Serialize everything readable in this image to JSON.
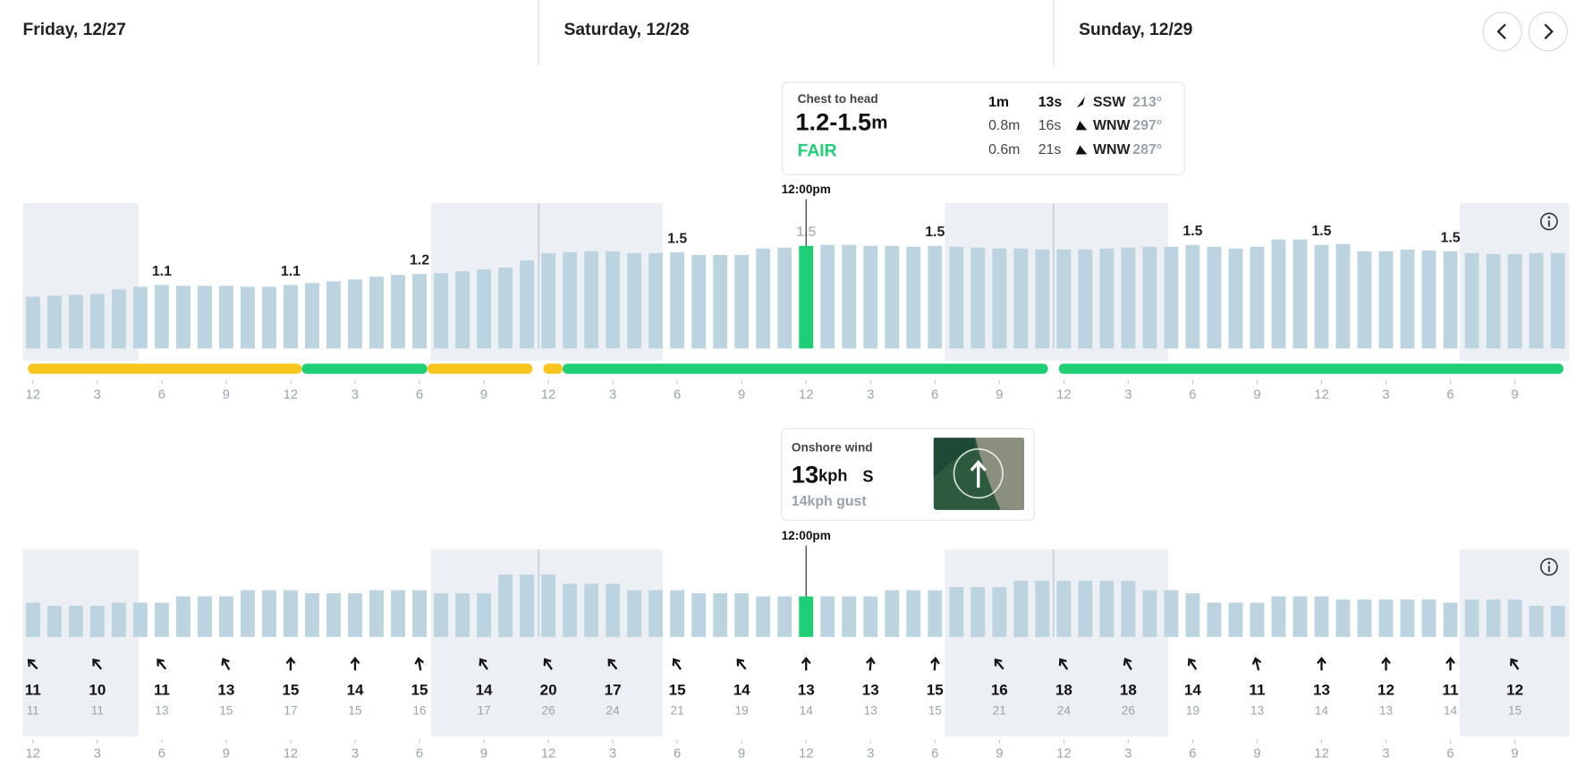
{
  "days": [
    "Friday, 12/27",
    "Saturday, 12/28",
    "Sunday, 12/29"
  ],
  "surf_tooltip": {
    "title": "Chest to head",
    "height": "1.2-1.5",
    "unit": "m",
    "rating": "FAIR",
    "swells": [
      [
        "1m",
        "13s",
        "SSW",
        "213°"
      ],
      [
        "0.8m",
        "16s",
        "WNW",
        "297°"
      ],
      [
        "0.6m",
        "21s",
        "WNW",
        "287°"
      ]
    ]
  },
  "wind_tooltip": {
    "title": "Onshore wind",
    "speed": "13",
    "unit": "kph",
    "direction": "S",
    "gust": "14kph gust"
  },
  "chart_data": [
    {
      "type": "bar",
      "color": "#bcd4df",
      "highlight_color": "#1fcf75",
      "highlight_index": 36,
      "highlight_label": "12:00pm",
      "ylim": [
        0.4,
        2.0
      ],
      "values": [
        0.97,
        0.98,
        0.99,
        1.0,
        1.05,
        1.08,
        1.1,
        1.09,
        1.09,
        1.09,
        1.08,
        1.08,
        1.1,
        1.12,
        1.14,
        1.16,
        1.19,
        1.21,
        1.22,
        1.23,
        1.25,
        1.27,
        1.29,
        1.37,
        1.45,
        1.46,
        1.47,
        1.47,
        1.45,
        1.45,
        1.46,
        1.43,
        1.43,
        1.43,
        1.5,
        1.51,
        1.53,
        1.54,
        1.54,
        1.53,
        1.53,
        1.52,
        1.53,
        1.52,
        1.51,
        1.5,
        1.5,
        1.49,
        1.49,
        1.49,
        1.5,
        1.51,
        1.52,
        1.52,
        1.54,
        1.52,
        1.5,
        1.52,
        1.6,
        1.6,
        1.54,
        1.55,
        1.47,
        1.47,
        1.49,
        1.48,
        1.47,
        1.45,
        1.44,
        1.44,
        1.45,
        1.45
      ],
      "value_labels": [
        null,
        null,
        null,
        null,
        null,
        null,
        "1.1",
        null,
        null,
        null,
        null,
        null,
        "1.1",
        null,
        null,
        null,
        null,
        null,
        "1.2",
        null,
        null,
        null,
        null,
        null,
        null,
        null,
        null,
        null,
        null,
        null,
        "1.5",
        null,
        null,
        null,
        null,
        null,
        "1.5",
        null,
        null,
        null,
        null,
        null,
        "1.5",
        null,
        null,
        null,
        null,
        null,
        null,
        null,
        null,
        null,
        null,
        null,
        "1.5",
        null,
        null,
        null,
        null,
        null,
        "1.5",
        null,
        null,
        null,
        null,
        null,
        "1.5",
        null,
        null,
        null,
        null,
        null
      ],
      "rating": [
        {
          "from": 0,
          "to": 12.75,
          "color": "#f8c51c"
        },
        {
          "from": 12.75,
          "to": 18.6,
          "color": "#1fcf75"
        },
        {
          "from": 18.6,
          "to": 23.5,
          "color": "#f8c51c"
        },
        {
          "from": 24,
          "to": 24.9,
          "color": "#f8c51c"
        },
        {
          "from": 24.9,
          "to": 47.5,
          "color": "#1fcf75"
        },
        {
          "from": 48,
          "to": 71.5,
          "color": "#1fcf75"
        }
      ],
      "xticks": [
        {
          "value": 0,
          "label": "12"
        },
        {
          "value": 3,
          "label": "3"
        },
        {
          "value": 6,
          "label": "6"
        },
        {
          "value": 9,
          "label": "9"
        },
        {
          "value": 12,
          "label": "12"
        },
        {
          "value": 15,
          "label": "3"
        },
        {
          "value": 18,
          "label": "6"
        },
        {
          "value": 21,
          "label": "9"
        },
        {
          "value": 24,
          "label": "12"
        },
        {
          "value": 27,
          "label": "3"
        },
        {
          "value": 30,
          "label": "6"
        },
        {
          "value": 33,
          "label": "9"
        },
        {
          "value": 36,
          "label": "12"
        },
        {
          "value": 39,
          "label": "3"
        },
        {
          "value": 42,
          "label": "6"
        },
        {
          "value": 45,
          "label": "9"
        },
        {
          "value": 48,
          "label": "12"
        },
        {
          "value": 51,
          "label": "3"
        },
        {
          "value": 54,
          "label": "6"
        },
        {
          "value": 57,
          "label": "9"
        },
        {
          "value": 60,
          "label": "12"
        },
        {
          "value": 63,
          "label": "3"
        },
        {
          "value": 66,
          "label": "6"
        },
        {
          "value": 69,
          "label": "9"
        }
      ]
    },
    {
      "type": "bar",
      "color": "#bcd4df",
      "highlight_color": "#1fcf75",
      "highlight_index": 36,
      "highlight_label": "12:00pm",
      "ylim": [
        0,
        28
      ],
      "values": [
        11,
        10,
        10,
        10,
        11,
        11,
        11,
        13,
        13,
        13,
        15,
        15,
        15,
        14,
        14,
        14,
        15,
        15,
        15,
        14,
        14,
        14,
        20,
        20,
        20,
        17,
        17,
        17,
        15,
        15,
        15,
        14,
        14,
        14,
        13,
        13,
        13,
        13,
        13,
        13,
        15,
        15,
        15,
        16,
        16,
        16,
        18,
        18,
        18,
        18,
        18,
        18,
        15,
        15,
        14,
        11,
        11,
        11,
        13,
        13,
        13,
        12,
        12,
        12,
        12,
        12,
        11,
        12,
        12,
        12,
        10,
        10
      ],
      "gusts": [
        11,
        null,
        null,
        11,
        null,
        null,
        13,
        null,
        null,
        15,
        null,
        null,
        17,
        null,
        null,
        15,
        null,
        null,
        16,
        null,
        null,
        17,
        null,
        null,
        26,
        null,
        null,
        24,
        null,
        null,
        21,
        null,
        null,
        19,
        null,
        null,
        14,
        null,
        null,
        13,
        null,
        null,
        15,
        null,
        null,
        21,
        null,
        null,
        24,
        null,
        null,
        26,
        null,
        null,
        19,
        null,
        null,
        13,
        null,
        null,
        14,
        null,
        null,
        13,
        null,
        null,
        14,
        null,
        null,
        15,
        null,
        null
      ],
      "direction": [
        -45,
        null,
        null,
        -40,
        null,
        null,
        -40,
        null,
        null,
        -30,
        null,
        null,
        0,
        null,
        null,
        0,
        null,
        null,
        -10,
        null,
        null,
        -35,
        null,
        null,
        -35,
        null,
        null,
        -40,
        null,
        null,
        -35,
        null,
        null,
        -40,
        null,
        null,
        0,
        null,
        null,
        5,
        null,
        null,
        5,
        null,
        null,
        -40,
        null,
        null,
        -35,
        null,
        null,
        -30,
        null,
        null,
        -35,
        null,
        null,
        -15,
        null,
        null,
        0,
        null,
        null,
        0,
        null,
        null,
        0,
        null,
        null,
        -35,
        null,
        null
      ],
      "xticks": [
        {
          "value": 0,
          "label": "12"
        },
        {
          "value": 3,
          "label": "3"
        },
        {
          "value": 6,
          "label": "6"
        },
        {
          "value": 9,
          "label": "9"
        },
        {
          "value": 12,
          "label": "12"
        },
        {
          "value": 15,
          "label": "3"
        },
        {
          "value": 18,
          "label": "6"
        },
        {
          "value": 21,
          "label": "9"
        },
        {
          "value": 24,
          "label": "12"
        },
        {
          "value": 27,
          "label": "3"
        },
        {
          "value": 30,
          "label": "6"
        },
        {
          "value": 33,
          "label": "9"
        },
        {
          "value": 36,
          "label": "12"
        },
        {
          "value": 39,
          "label": "3"
        },
        {
          "value": 42,
          "label": "6"
        },
        {
          "value": 45,
          "label": "9"
        },
        {
          "value": 48,
          "label": "12"
        },
        {
          "value": 51,
          "label": "3"
        },
        {
          "value": 54,
          "label": "6"
        },
        {
          "value": 57,
          "label": "9"
        },
        {
          "value": 60,
          "label": "12"
        },
        {
          "value": 63,
          "label": "3"
        },
        {
          "value": 66,
          "label": "6"
        },
        {
          "value": 69,
          "label": "9"
        }
      ]
    }
  ]
}
